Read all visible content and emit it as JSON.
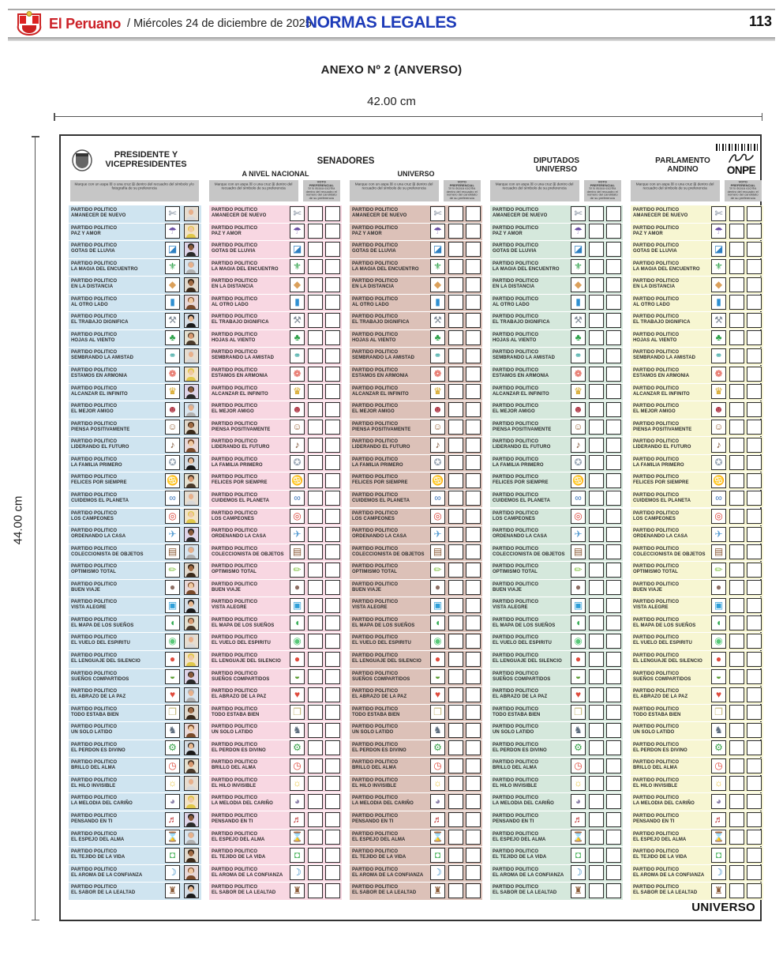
{
  "page_header": {
    "brand": "El Peruano",
    "date_line": "/ Miércoles 24 de diciembre de 2025",
    "section_title": "NORMAS LEGALES",
    "page_number": "113"
  },
  "document": {
    "title": "ANEXO Nº 2 (ANVERSO)",
    "width_label": "42.00  cm",
    "height_label": "44.00  cm"
  },
  "ballot": {
    "senadores_group_label": "SENADORES",
    "footer_label": "UNIVERSO",
    "onpe_word": "ONPE",
    "instructions": {
      "col1": "Marque con un aspa ☒ o una cruz ⊞ dentro del recuadro del símbolo y/o fotografía de su preferencia",
      "others": "Marque con un aspa ☒ o una cruz ⊞ dentro del recuadro del símbolo de su preferencia"
    },
    "voto_preferencial": {
      "title": "VOTO PREFERENCIAL",
      "text": "Si lo desea escriba dentro del recuadro el número del candidato de su preferencia"
    },
    "columns": [
      {
        "id": "presidente-vicepresidentes",
        "title1": "PRESIDENTE Y",
        "title2": "VICEPRESIDENTES",
        "bg": "#cfe4f0",
        "has_photo": true
      },
      {
        "id": "senadores-a-nivel-nacional",
        "title1": "A NIVEL NACIONAL",
        "title2": "",
        "bg": "#f8d7e2",
        "has_photo": false
      },
      {
        "id": "senadores-universo",
        "title1": "UNIVERSO",
        "title2": "",
        "bg": "#dcc1b8",
        "has_photo": false
      },
      {
        "id": "diputados-universo",
        "title1": "DIPUTADOS",
        "title2": "UNIVERSO",
        "bg": "#d5e8dc",
        "has_photo": false
      },
      {
        "id": "parlamento-andino",
        "title1": "PARLAMENTO",
        "title2": "ANDINO",
        "bg": "#f7f6d2",
        "has_photo": false
      }
    ],
    "parties": [
      {
        "name": "PARTIDO POLITICO AMANECER DE NUEVO",
        "icon": {
          "name": "saw-icon",
          "glyph": "✄",
          "color": "#6d7b8d"
        }
      },
      {
        "name": "PARTIDO POLITICO PAZ Y AMOR",
        "icon": {
          "name": "umbrella-icon",
          "glyph": "☂",
          "color": "#6a4fa3"
        }
      },
      {
        "name": "PARTIDO POLITICO GOTAS DE LLUVIA",
        "icon": {
          "name": "dustpan-icon",
          "glyph": "◪",
          "color": "#2d7fc1"
        }
      },
      {
        "name": "PARTIDO POLITICO LA MAGIA DEL ENCUENTRO",
        "icon": {
          "name": "tshirt-icon",
          "glyph": "⚜",
          "color": "#2fa24a"
        }
      },
      {
        "name": "PARTIDO POLITICO EN LA DISTANCIA",
        "icon": {
          "name": "bread-icon",
          "glyph": "◆",
          "color": "#dba05a"
        }
      },
      {
        "name": "PARTIDO POLITICO AL OTRO LADO",
        "icon": {
          "name": "book-icon",
          "glyph": "▮",
          "color": "#2d8fd1"
        }
      },
      {
        "name": "PARTIDO POLITICO EL TRABAJO DIGNIFICA",
        "icon": {
          "name": "hammer-icon",
          "glyph": "⚒",
          "color": "#7c8894"
        }
      },
      {
        "name": "PARTIDO POLITICO HOJAS AL VIENTO",
        "icon": {
          "name": "clover-icon",
          "glyph": "♣",
          "color": "#2fa24a"
        }
      },
      {
        "name": "PARTIDO POLITICO SEMBRANDO LA AMISTAD",
        "icon": {
          "name": "socks-icon",
          "glyph": "⚭",
          "color": "#3aa6a0"
        }
      },
      {
        "name": "PARTIDO POLITICO ESTAMOS EN ARMONIA",
        "icon": {
          "name": "candy-icon",
          "glyph": "❁",
          "color": "#e04b3c"
        }
      },
      {
        "name": "PARTIDO POLITICO ALCANZAR EL INFINITO",
        "icon": {
          "name": "statue-icon",
          "glyph": "♛",
          "color": "#d4a017"
        }
      },
      {
        "name": "PARTIDO POLITICO EL MEJOR AMIGO",
        "icon": {
          "name": "theater-masks-icon",
          "glyph": "☻",
          "color": "#b03a48"
        }
      },
      {
        "name": "PARTIDO POLITICO PIENSA POSITIVAMENTE",
        "icon": {
          "name": "monkey-icon",
          "glyph": "☺",
          "color": "#9c6b43"
        }
      },
      {
        "name": "PARTIDO POLITICO LIDERANDO EL FUTURO",
        "icon": {
          "name": "violin-icon",
          "glyph": "♪",
          "color": "#7a4e2d"
        }
      },
      {
        "name": "PARTIDO POLITICO LA FAMILIA PRIMERO",
        "icon": {
          "name": "sneaker-icon",
          "glyph": "✪",
          "color": "#9aa7b5"
        }
      },
      {
        "name": "PARTIDO POLITICO FELICES POR SIEMPRE",
        "icon": {
          "name": "shrimp-icon",
          "glyph": "♋",
          "color": "#d35fa0"
        }
      },
      {
        "name": "PARTIDO POLITICO CUIDEMOS EL PLANETA",
        "icon": {
          "name": "bicycle-icon",
          "glyph": "∞",
          "color": "#3a74b8"
        }
      },
      {
        "name": "PARTIDO POLITICO LOS CAMPEONES",
        "icon": {
          "name": "dart-target-icon",
          "glyph": "◎",
          "color": "#d93a2f"
        }
      },
      {
        "name": "PARTIDO POLITICO ORDENANDO LA CASA",
        "icon": {
          "name": "paper-plane-icon",
          "glyph": "✈",
          "color": "#5a9fd4"
        }
      },
      {
        "name": "PARTIDO POLITICO COLECCIONISTA DE OBJETOS",
        "icon": {
          "name": "briefcase-icon",
          "glyph": "▤",
          "color": "#8a5a36"
        }
      },
      {
        "name": "PARTIDO POLITICO OPTIMISMO TOTAL",
        "icon": {
          "name": "pencil-leaf-icon",
          "glyph": "✏",
          "color": "#86c44a"
        }
      },
      {
        "name": "PARTIDO POLITICO BUEN VIAJE",
        "icon": {
          "name": "bear-icon",
          "glyph": "●",
          "color": "#8d6e63"
        }
      },
      {
        "name": "PARTIDO POLITICO VISTA ALEGRE",
        "icon": {
          "name": "laptop-icon",
          "glyph": "▣",
          "color": "#2f9fd8"
        }
      },
      {
        "name": "PARTIDO POLITICO EL MAPA DE LOS SUEÑOS",
        "icon": {
          "name": "watermelon-icon",
          "glyph": "◖",
          "color": "#2faa4f"
        }
      },
      {
        "name": "PARTIDO POLITICO EL VUELO DEL ESPIRITU",
        "icon": {
          "name": "alien-icon",
          "glyph": "◉",
          "color": "#58c878"
        }
      },
      {
        "name": "PARTIDO POLITICO EL LENGUAJE DEL SILENCIO",
        "icon": {
          "name": "balloon-icon",
          "glyph": "●",
          "color": "#e04b3c"
        }
      },
      {
        "name": "PARTIDO POLITICO SUEÑOS COMPARTIDOS",
        "icon": {
          "name": "avocado-icon",
          "glyph": "◒",
          "color": "#5a9c30"
        }
      },
      {
        "name": "PARTIDO POLITICO EL ABRAZO DE LA PAZ",
        "icon": {
          "name": "sweater-icon",
          "glyph": "♥",
          "color": "#e04b3c"
        }
      },
      {
        "name": "PARTIDO POLITICO TODO ESTABA BIEN",
        "icon": {
          "name": "notes-icon",
          "glyph": "❐",
          "color": "#c4b878"
        }
      },
      {
        "name": "PARTIDO POLITICO UN SOLO LATIDO",
        "icon": {
          "name": "cat-icon",
          "glyph": "♞",
          "color": "#5d6d7e"
        }
      },
      {
        "name": "PARTIDO POLITICO EL PERDON ES DIVINO",
        "icon": {
          "name": "truck-icon",
          "glyph": "⚙",
          "color": "#3aa24a"
        }
      },
      {
        "name": "PARTIDO POLITICO BRILLO DEL ALMA",
        "icon": {
          "name": "alarm-clock-icon",
          "glyph": "◷",
          "color": "#e04b3c"
        }
      },
      {
        "name": "PARTIDO POLITICO EL HILO INVISIBLE",
        "icon": {
          "name": "chick-icon",
          "glyph": "☼",
          "color": "#e8c43c"
        }
      },
      {
        "name": "PARTIDO POLITICO LA MELODIA DEL CARIÑO",
        "icon": {
          "name": "elephant-icon",
          "glyph": "◕",
          "color": "#8b80a8"
        }
      },
      {
        "name": "PARTIDO POLITICO PENSANDO EN TI",
        "icon": {
          "name": "guitar-icon",
          "glyph": "♬",
          "color": "#c03a3a"
        }
      },
      {
        "name": "PARTIDO POLITICO EL ESPEJO DEL ALMA",
        "icon": {
          "name": "bone-icon",
          "glyph": "⌛",
          "color": "#b8bec4"
        }
      },
      {
        "name": "PARTIDO POLITICO EL TEJIDO DE LA VIDA",
        "icon": {
          "name": "car-icon",
          "glyph": "◘",
          "color": "#58b868"
        }
      },
      {
        "name": "PARTIDO POLITICO EL AROMA DE LA CONFIANZA",
        "icon": {
          "name": "dolphin-icon",
          "glyph": "☽",
          "color": "#2e86c1"
        }
      },
      {
        "name": "PARTIDO POLITICO EL SABOR DE LA LEALTAD",
        "icon": {
          "name": "chair-icon",
          "glyph": "♜",
          "color": "#8a5a36"
        }
      }
    ],
    "photo_palette": [
      {
        "bg": "#e6ddd0",
        "skin": "#e8b08a",
        "hair": "#d8d8d8"
      },
      {
        "bg": "#f2e3c8",
        "skin": "#f0c8a0",
        "hair": "#e0c84a"
      },
      {
        "bg": "#ded4e8",
        "skin": "#8a5a3a",
        "hair": "#2a2a2a"
      },
      {
        "bg": "#d8e4ee",
        "skin": "#e8b08a",
        "hair": "#b0b0b0"
      },
      {
        "bg": "#e0d8cc",
        "skin": "#a06a42",
        "hair": "#3a2a1a"
      },
      {
        "bg": "#e8d8d8",
        "skin": "#f0c8a0",
        "hair": "#7a4a2a"
      },
      {
        "bg": "#d4dce4",
        "skin": "#e8b890",
        "hair": "#1a1a1a"
      },
      {
        "bg": "#e4e0d0",
        "skin": "#d89a70",
        "hair": "#4a3a2a"
      }
    ]
  }
}
